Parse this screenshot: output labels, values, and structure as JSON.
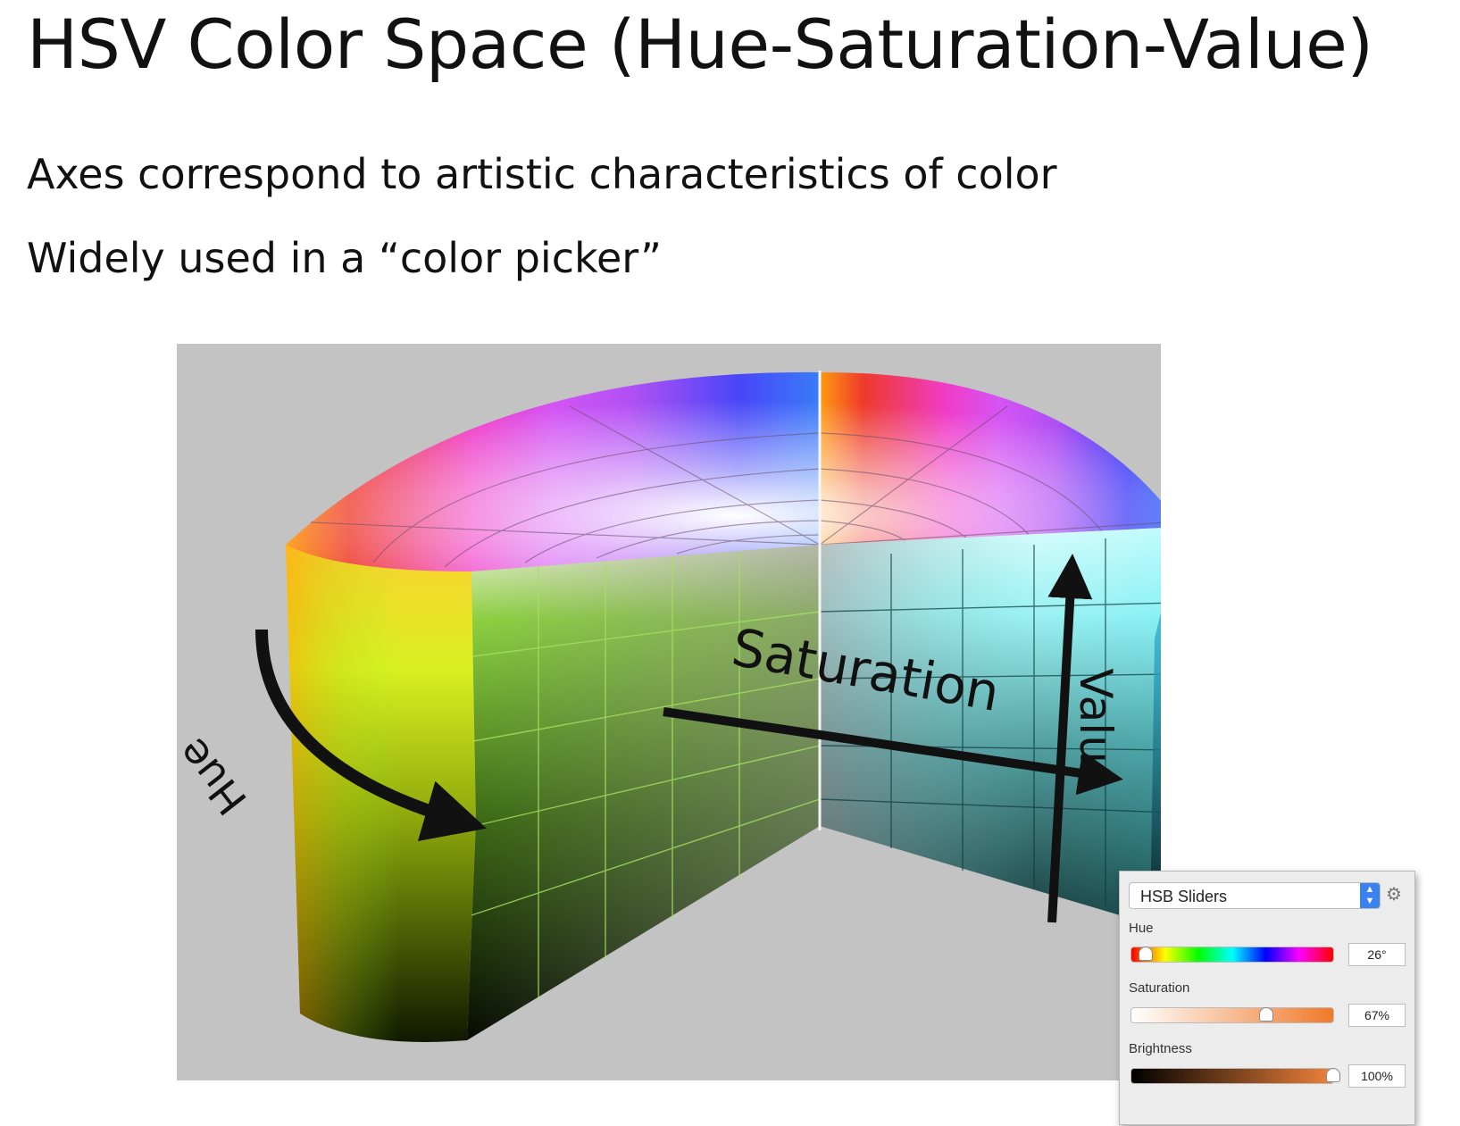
{
  "title": "HSV Color Space (Hue-Saturation-Value)",
  "bullets": [
    "Axes correspond to artistic characteristics of color",
    "Widely used in a “color picker”"
  ],
  "figure": {
    "hue_label": "Hue",
    "saturation_label": "Saturation",
    "value_label": "Value"
  },
  "picker": {
    "mode": "HSB Sliders",
    "hue": {
      "label": "Hue",
      "value": "26°",
      "fraction": 0.072
    },
    "saturation": {
      "label": "Saturation",
      "value": "67%",
      "fraction": 0.67
    },
    "brightness": {
      "label": "Brightness",
      "value": "100%",
      "fraction": 1.0
    }
  },
  "colors": {
    "figure_background": "#c3c3c3",
    "arrow": "#111111",
    "picker_accent": "#3b82f0"
  }
}
